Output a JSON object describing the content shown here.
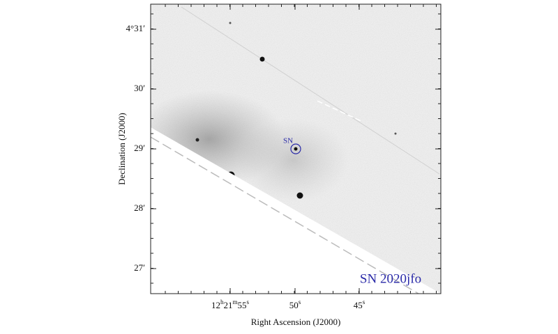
{
  "figure": {
    "label": "SN 2020jfo",
    "marker_label": "SN",
    "x_axis": {
      "label": "Right Ascension (J2000)",
      "ticks": [
        [
          "12",
          "h",
          "21",
          "m",
          "55",
          "s"
        ],
        [
          "50",
          "s"
        ],
        [
          "45",
          "s"
        ]
      ]
    },
    "y_axis": {
      "label": "Declination (J2000)",
      "ticks": [
        "4°31′",
        "30′",
        "29′",
        "28′",
        "27′"
      ]
    }
  }
}
